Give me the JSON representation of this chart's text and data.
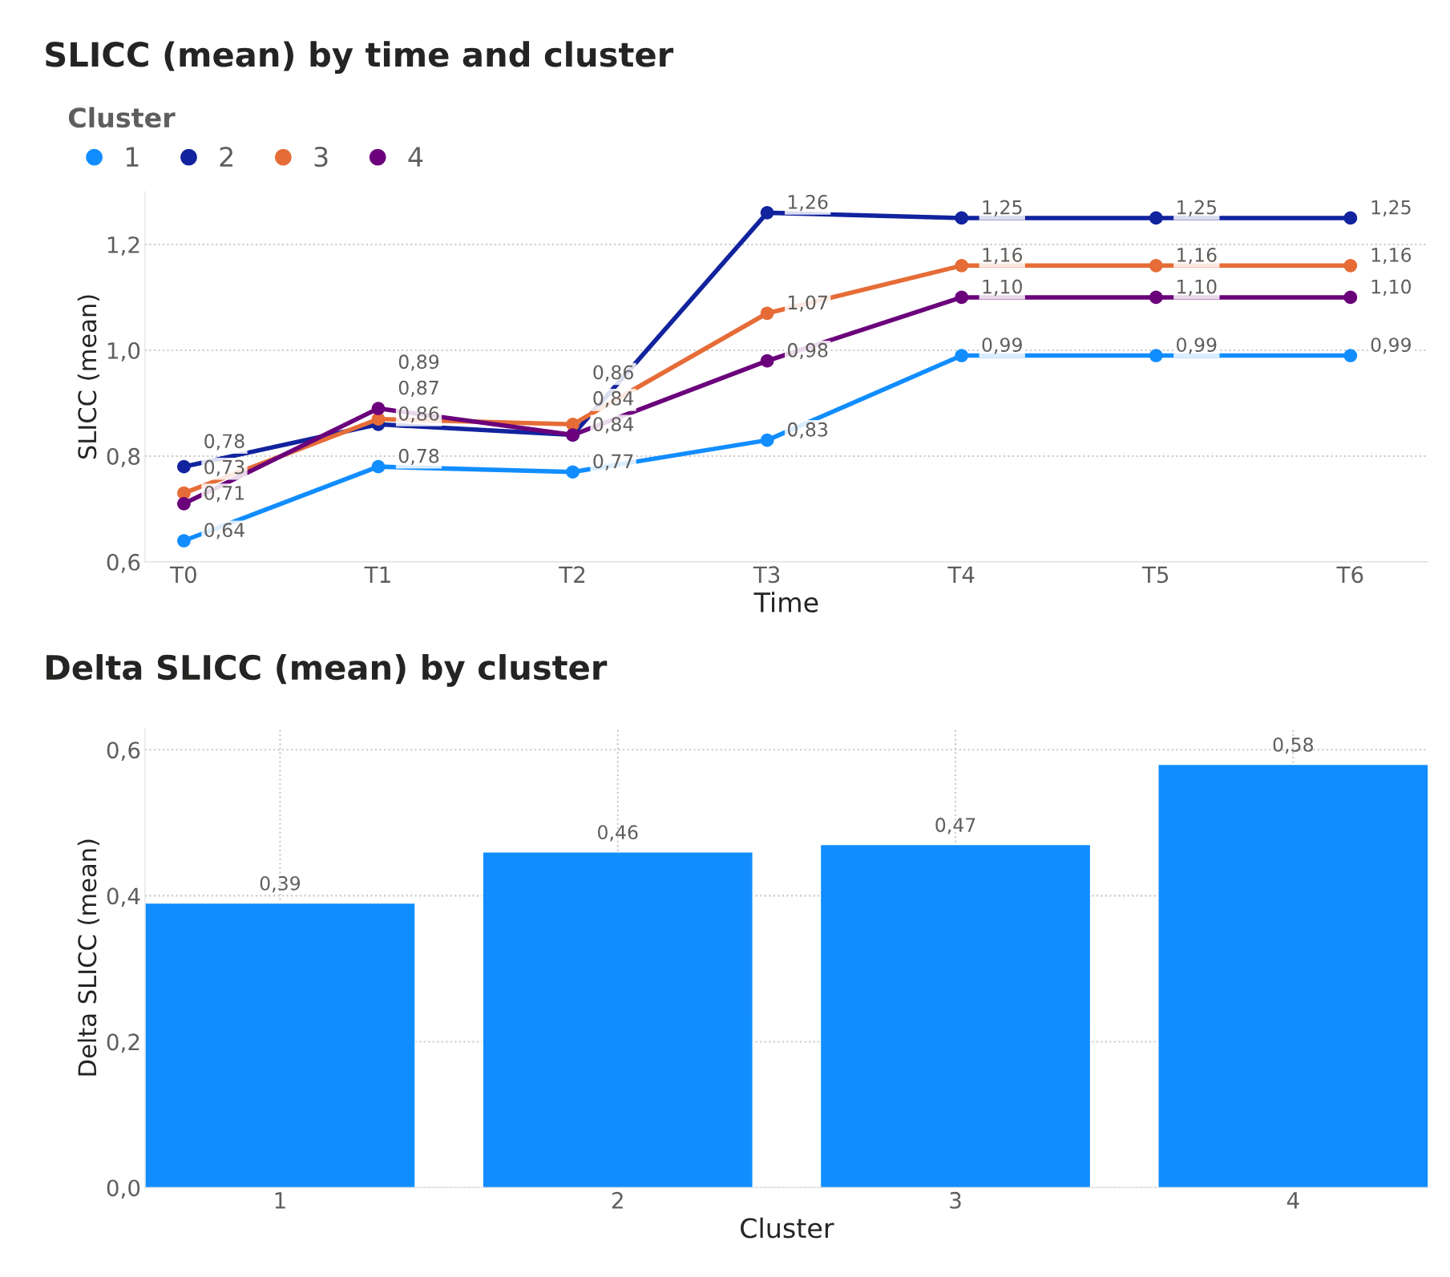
{
  "chart_data": [
    {
      "type": "line",
      "title": "SLICC (mean) by time and cluster",
      "xlabel": "Time",
      "ylabel": "SLICC (mean)",
      "legend_title": "Cluster",
      "legend": "top left",
      "marker": "circle",
      "line_style": "solid",
      "grid": "y",
      "categories": [
        "T0",
        "T1",
        "T2",
        "T3",
        "T4",
        "T5",
        "T6"
      ],
      "ylim": [
        0.6,
        1.3
      ],
      "yticks": [
        {
          "value": 0.6,
          "label": "0,6"
        },
        {
          "value": 0.8,
          "label": "0,8"
        },
        {
          "value": 1.0,
          "label": "1,0"
        },
        {
          "value": 1.2,
          "label": "1,2"
        }
      ],
      "series": [
        {
          "name": "1",
          "color": "#118dff",
          "values": [
            0.64,
            0.78,
            0.77,
            0.83,
            0.99,
            0.99,
            0.99
          ],
          "value_labels": [
            "0,64",
            "0,78",
            "0,77",
            "0,83",
            "0,99",
            "0,99",
            "0,99"
          ]
        },
        {
          "name": "2",
          "color": "#12239e",
          "values": [
            0.78,
            0.86,
            0.84,
            1.26,
            1.25,
            1.25,
            1.25
          ],
          "value_labels": [
            "0,78",
            "0,86",
            "0,84",
            "1,26",
            "1,25",
            "1,25",
            "1,25"
          ]
        },
        {
          "name": "3",
          "color": "#e66c37",
          "values": [
            0.73,
            0.87,
            0.86,
            1.07,
            1.16,
            1.16,
            1.16
          ],
          "value_labels": [
            "0,73",
            "0,87",
            "0,86",
            "1,07",
            "1,16",
            "1,16",
            "1,16"
          ]
        },
        {
          "name": "4",
          "color": "#6b007b",
          "values": [
            0.71,
            0.89,
            0.84,
            0.98,
            1.1,
            1.1,
            1.1
          ],
          "value_labels": [
            "0,71",
            "0,89",
            "0,84",
            "0,98",
            "1,10",
            "1,10",
            "1,10"
          ]
        }
      ]
    },
    {
      "type": "bar",
      "title": "Delta SLICC (mean) by cluster",
      "xlabel": "Cluster",
      "ylabel": "Delta SLICC (mean)",
      "grid": true,
      "categories": [
        "1",
        "2",
        "3",
        "4"
      ],
      "values": [
        0.39,
        0.46,
        0.47,
        0.58
      ],
      "color": "#118dff",
      "value_labels": [
        "0,39",
        "0,46",
        "0,47",
        "0,58"
      ],
      "ylim": [
        0,
        0.63
      ],
      "yticks": [
        {
          "value": 0,
          "label": "0,0"
        },
        {
          "value": 0.2,
          "label": "0,2"
        },
        {
          "value": 0.4,
          "label": "0,4"
        },
        {
          "value": 0.6,
          "label": "0,6"
        }
      ]
    }
  ]
}
